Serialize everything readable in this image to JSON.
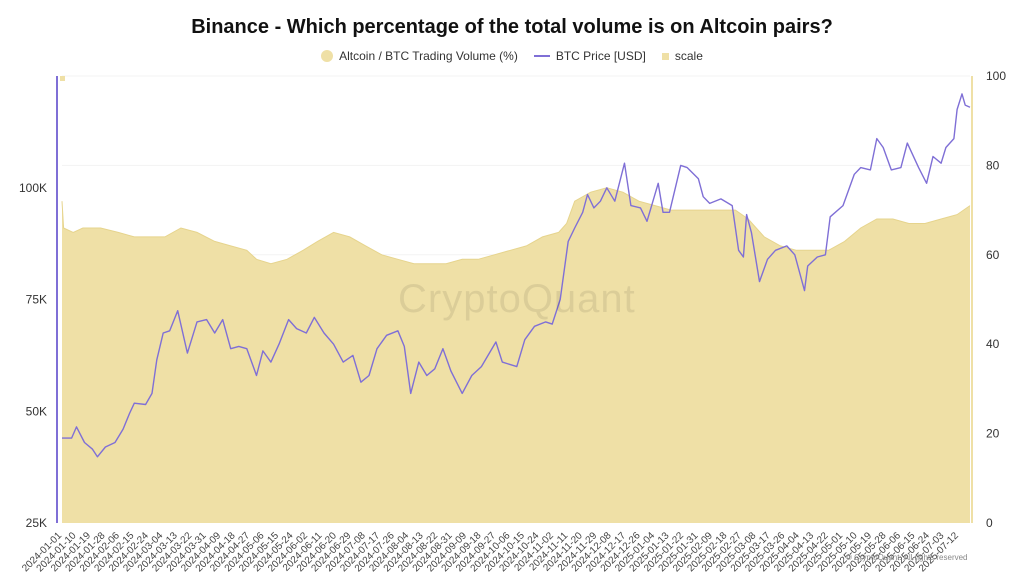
{
  "chart_data": {
    "type": "area",
    "title": "Binance - Which percentage of the total volume is on Altcoin pairs?",
    "legend_position": "top-center",
    "grid": false,
    "left_axis": {
      "ticks": [
        25000,
        50000,
        75000,
        100000
      ],
      "tick_labels": [
        "25K",
        "50K",
        "75K",
        "100K"
      ],
      "range": [
        25000,
        125000
      ]
    },
    "right_axis": {
      "ticks": [
        0,
        20,
        40,
        60,
        80,
        100
      ],
      "tick_labels": [
        "0",
        "20",
        "40",
        "60",
        "80",
        "100"
      ],
      "range": [
        0,
        100
      ]
    },
    "x_range": [
      "2024-01-01",
      "2025-07-19"
    ],
    "x_tick_labels": [
      "2024-01-01",
      "2024-01-10",
      "2024-01-19",
      "2024-01-28",
      "2024-02-06",
      "2024-02-15",
      "2024-02-24",
      "2024-03-04",
      "2024-03-13",
      "2024-03-22",
      "2024-03-31",
      "2024-04-09",
      "2024-04-18",
      "2024-04-27",
      "2024-05-06",
      "2024-05-15",
      "2024-05-24",
      "2024-06-02",
      "2024-06-11",
      "2024-06-20",
      "2024-06-29",
      "2024-07-08",
      "2024-07-17",
      "2024-07-26",
      "2024-08-04",
      "2024-08-13",
      "2024-08-22",
      "2024-08-31",
      "2024-09-09",
      "2024-09-18",
      "2024-09-27",
      "2024-10-06",
      "2024-10-15",
      "2024-10-24",
      "2024-11-02",
      "2024-11-11",
      "2024-11-20",
      "2024-11-29",
      "2024-12-08",
      "2024-12-17",
      "2024-12-26",
      "2025-01-04",
      "2025-01-13",
      "2025-01-22",
      "2025-01-31",
      "2025-02-09",
      "2025-02-18",
      "2025-02-27",
      "2025-03-08",
      "2025-03-17",
      "2025-03-26",
      "2025-04-04",
      "2025-04-13",
      "2025-04-22",
      "2025-05-01",
      "2025-05-10",
      "2025-05-19",
      "2025-05-28",
      "2025-06-06",
      "2025-06-15",
      "2025-06-24",
      "2025-07-03",
      "2025-07-12"
    ],
    "series": [
      {
        "name": "Altcoin / BTC Trading Volume (%)",
        "type": "area",
        "axis": "right",
        "color": "#efe0a6",
        "points": [
          [
            "2024-01-01",
            72
          ],
          [
            "2024-01-02",
            66
          ],
          [
            "2024-01-08",
            65
          ],
          [
            "2024-01-14",
            66
          ],
          [
            "2024-01-25",
            66
          ],
          [
            "2024-02-05",
            65
          ],
          [
            "2024-02-15",
            64
          ],
          [
            "2024-02-25",
            64
          ],
          [
            "2024-03-05",
            64
          ],
          [
            "2024-03-15",
            66
          ],
          [
            "2024-03-25",
            65
          ],
          [
            "2024-04-05",
            63
          ],
          [
            "2024-04-15",
            62
          ],
          [
            "2024-04-25",
            61
          ],
          [
            "2024-05-01",
            59
          ],
          [
            "2024-05-10",
            58
          ],
          [
            "2024-05-20",
            59
          ],
          [
            "2024-05-30",
            61
          ],
          [
            "2024-06-08",
            63
          ],
          [
            "2024-06-18",
            65
          ],
          [
            "2024-06-28",
            64
          ],
          [
            "2024-07-08",
            62
          ],
          [
            "2024-07-18",
            60
          ],
          [
            "2024-07-28",
            59
          ],
          [
            "2024-08-07",
            58
          ],
          [
            "2024-08-17",
            58
          ],
          [
            "2024-08-27",
            58
          ],
          [
            "2024-09-06",
            59
          ],
          [
            "2024-09-16",
            59
          ],
          [
            "2024-09-26",
            60
          ],
          [
            "2024-10-06",
            61
          ],
          [
            "2024-10-16",
            62
          ],
          [
            "2024-10-26",
            64
          ],
          [
            "2024-11-05",
            65
          ],
          [
            "2024-11-10",
            67
          ],
          [
            "2024-11-15",
            72
          ],
          [
            "2024-11-25",
            74
          ],
          [
            "2024-12-05",
            75
          ],
          [
            "2024-12-15",
            74
          ],
          [
            "2024-12-25",
            72
          ],
          [
            "2025-01-04",
            71
          ],
          [
            "2025-01-14",
            70
          ],
          [
            "2025-01-24",
            70
          ],
          [
            "2025-02-03",
            70
          ],
          [
            "2025-02-13",
            70
          ],
          [
            "2025-02-23",
            70
          ],
          [
            "2025-03-03",
            68
          ],
          [
            "2025-03-13",
            64
          ],
          [
            "2025-03-23",
            62
          ],
          [
            "2025-04-02",
            61
          ],
          [
            "2025-04-12",
            61
          ],
          [
            "2025-04-22",
            61
          ],
          [
            "2025-05-02",
            63
          ],
          [
            "2025-05-12",
            66
          ],
          [
            "2025-05-22",
            68
          ],
          [
            "2025-06-01",
            68
          ],
          [
            "2025-06-11",
            67
          ],
          [
            "2025-06-21",
            67
          ],
          [
            "2025-07-01",
            68
          ],
          [
            "2025-07-11",
            69
          ],
          [
            "2025-07-19",
            71
          ]
        ]
      },
      {
        "name": "BTC Price [USD]",
        "type": "line",
        "axis": "left",
        "color": "#7f6fd6",
        "points": [
          [
            "2024-01-01",
            44000
          ],
          [
            "2024-01-07",
            44000
          ],
          [
            "2024-01-10",
            46500
          ],
          [
            "2024-01-15",
            43000
          ],
          [
            "2024-01-20",
            41500
          ],
          [
            "2024-01-23",
            39800
          ],
          [
            "2024-01-28",
            42000
          ],
          [
            "2024-02-03",
            43000
          ],
          [
            "2024-02-08",
            46000
          ],
          [
            "2024-02-12",
            49500
          ],
          [
            "2024-02-15",
            51800
          ],
          [
            "2024-02-22",
            51500
          ],
          [
            "2024-02-26",
            54000
          ],
          [
            "2024-02-29",
            61500
          ],
          [
            "2024-03-04",
            67500
          ],
          [
            "2024-03-08",
            68000
          ],
          [
            "2024-03-13",
            72500
          ],
          [
            "2024-03-19",
            63000
          ],
          [
            "2024-03-25",
            70000
          ],
          [
            "2024-03-31",
            70500
          ],
          [
            "2024-04-05",
            67500
          ],
          [
            "2024-04-10",
            70500
          ],
          [
            "2024-04-15",
            64000
          ],
          [
            "2024-04-20",
            64500
          ],
          [
            "2024-04-25",
            64000
          ],
          [
            "2024-05-01",
            58000
          ],
          [
            "2024-05-05",
            63500
          ],
          [
            "2024-05-10",
            61000
          ],
          [
            "2024-05-15",
            65000
          ],
          [
            "2024-05-21",
            70500
          ],
          [
            "2024-05-26",
            68500
          ],
          [
            "2024-06-01",
            67500
          ],
          [
            "2024-06-06",
            71000
          ],
          [
            "2024-06-12",
            67500
          ],
          [
            "2024-06-18",
            65000
          ],
          [
            "2024-06-24",
            61000
          ],
          [
            "2024-06-30",
            62500
          ],
          [
            "2024-07-05",
            56500
          ],
          [
            "2024-07-10",
            58000
          ],
          [
            "2024-07-15",
            64000
          ],
          [
            "2024-07-21",
            67000
          ],
          [
            "2024-07-28",
            68000
          ],
          [
            "2024-08-01",
            64500
          ],
          [
            "2024-08-05",
            54000
          ],
          [
            "2024-08-10",
            61000
          ],
          [
            "2024-08-15",
            58000
          ],
          [
            "2024-08-20",
            59500
          ],
          [
            "2024-08-25",
            64000
          ],
          [
            "2024-08-30",
            59000
          ],
          [
            "2024-09-06",
            54000
          ],
          [
            "2024-09-12",
            58000
          ],
          [
            "2024-09-18",
            60000
          ],
          [
            "2024-09-27",
            65500
          ],
          [
            "2024-10-01",
            61000
          ],
          [
            "2024-10-10",
            60000
          ],
          [
            "2024-10-15",
            66000
          ],
          [
            "2024-10-21",
            69000
          ],
          [
            "2024-10-28",
            70000
          ],
          [
            "2024-11-01",
            69500
          ],
          [
            "2024-11-06",
            75000
          ],
          [
            "2024-11-11",
            88000
          ],
          [
            "2024-11-15",
            91000
          ],
          [
            "2024-11-20",
            94500
          ],
          [
            "2024-11-23",
            98500
          ],
          [
            "2024-11-27",
            95500
          ],
          [
            "2024-12-01",
            97000
          ],
          [
            "2024-12-05",
            100000
          ],
          [
            "2024-12-10",
            97000
          ],
          [
            "2024-12-16",
            105500
          ],
          [
            "2024-12-20",
            96000
          ],
          [
            "2024-12-26",
            95500
          ],
          [
            "2024-12-30",
            92500
          ],
          [
            "2025-01-06",
            101000
          ],
          [
            "2025-01-09",
            94500
          ],
          [
            "2025-01-13",
            94500
          ],
          [
            "2025-01-20",
            105000
          ],
          [
            "2025-01-24",
            104500
          ],
          [
            "2025-01-31",
            102000
          ],
          [
            "2025-02-03",
            98000
          ],
          [
            "2025-02-07",
            96500
          ],
          [
            "2025-02-14",
            97500
          ],
          [
            "2025-02-21",
            96000
          ],
          [
            "2025-02-25",
            86000
          ],
          [
            "2025-02-28",
            84500
          ],
          [
            "2025-03-02",
            94000
          ],
          [
            "2025-03-05",
            90000
          ],
          [
            "2025-03-10",
            79000
          ],
          [
            "2025-03-15",
            84000
          ],
          [
            "2025-03-20",
            86000
          ],
          [
            "2025-03-27",
            87000
          ],
          [
            "2025-04-01",
            85000
          ],
          [
            "2025-04-07",
            77000
          ],
          [
            "2025-04-09",
            82500
          ],
          [
            "2025-04-15",
            84500
          ],
          [
            "2025-04-20",
            85000
          ],
          [
            "2025-04-23",
            93500
          ],
          [
            "2025-05-01",
            96000
          ],
          [
            "2025-05-08",
            103000
          ],
          [
            "2025-05-12",
            104500
          ],
          [
            "2025-05-18",
            104000
          ],
          [
            "2025-05-22",
            111000
          ],
          [
            "2025-05-26",
            109000
          ],
          [
            "2025-05-31",
            104000
          ],
          [
            "2025-06-06",
            104500
          ],
          [
            "2025-06-10",
            110000
          ],
          [
            "2025-06-17",
            104500
          ],
          [
            "2025-06-22",
            101000
          ],
          [
            "2025-06-26",
            107000
          ],
          [
            "2025-07-01",
            105500
          ],
          [
            "2025-07-04",
            109000
          ],
          [
            "2025-07-09",
            111000
          ],
          [
            "2025-07-11",
            117500
          ],
          [
            "2025-07-14",
            121000
          ],
          [
            "2025-07-16",
            118500
          ],
          [
            "2025-07-19",
            118000
          ]
        ]
      },
      {
        "name": "scale",
        "type": "marker",
        "color": "#efe0a6"
      }
    ],
    "watermark": "CryptoQuant",
    "footer": "© CryptoQuant. All rights reserved"
  }
}
